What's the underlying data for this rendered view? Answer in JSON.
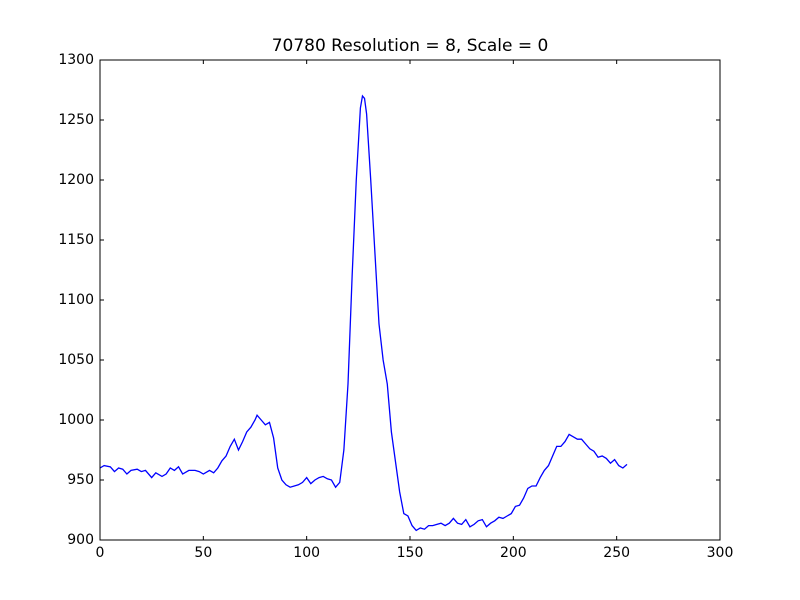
{
  "chart_data": {
    "type": "line",
    "title": "70780 Resolution = 8, Scale = 0",
    "xlim": [
      0,
      300
    ],
    "xticks": [
      0,
      50,
      100,
      150,
      200,
      250,
      300
    ],
    "ylim": [
      900,
      1300
    ],
    "yticks": [
      900,
      950,
      1000,
      1050,
      1100,
      1150,
      1200,
      1250,
      1300
    ],
    "series": [
      {
        "color": "#0000ff",
        "x": [
          0,
          2,
          5,
          7,
          9,
          11,
          13,
          15,
          18,
          20,
          22,
          25,
          27,
          30,
          32,
          34,
          36,
          38,
          40,
          43,
          46,
          48,
          50,
          53,
          55,
          57,
          59,
          61,
          63,
          65,
          67,
          69,
          71,
          73,
          75,
          76,
          78,
          80,
          82,
          84,
          86,
          88,
          90,
          92,
          94,
          96,
          98,
          100,
          102,
          104,
          106,
          108,
          110,
          112,
          114,
          116,
          118,
          120,
          122,
          124,
          126,
          127,
          128,
          129,
          131,
          133,
          135,
          137,
          139,
          141,
          143,
          145,
          147,
          149,
          151,
          153,
          155,
          157,
          159,
          161,
          163,
          165,
          167,
          169,
          171,
          173,
          175,
          177,
          179,
          181,
          183,
          185,
          187,
          189,
          191,
          193,
          195,
          197,
          199,
          201,
          203,
          205,
          207,
          209,
          211,
          213,
          215,
          217,
          219,
          221,
          223,
          225,
          227,
          229,
          231,
          233,
          235,
          237,
          239,
          241,
          243,
          245,
          247,
          249,
          251,
          253,
          255
        ],
        "values": [
          960,
          962,
          961,
          957,
          960,
          959,
          955,
          958,
          959,
          957,
          958,
          952,
          956,
          953,
          955,
          960,
          958,
          961,
          955,
          958,
          958,
          957,
          955,
          958,
          956,
          960,
          966,
          970,
          978,
          984,
          975,
          982,
          990,
          994,
          1000,
          1004,
          1000,
          996,
          998,
          985,
          960,
          950,
          946,
          944,
          945,
          946,
          948,
          952,
          947,
          950,
          952,
          953,
          951,
          950,
          944,
          948,
          975,
          1030,
          1120,
          1200,
          1260,
          1270,
          1268,
          1255,
          1200,
          1140,
          1080,
          1050,
          1030,
          990,
          965,
          940,
          922,
          920,
          912,
          908,
          910,
          909,
          912,
          912,
          913,
          914,
          912,
          914,
          918,
          914,
          913,
          917,
          911,
          913,
          916,
          917,
          911,
          914,
          916,
          919,
          918,
          920,
          922,
          928,
          929,
          935,
          943,
          945,
          945,
          952,
          958,
          962,
          970,
          978,
          978,
          982,
          988,
          986,
          984,
          984,
          980,
          976,
          974,
          969,
          970,
          968,
          964,
          967,
          962,
          960,
          963
        ]
      }
    ]
  }
}
